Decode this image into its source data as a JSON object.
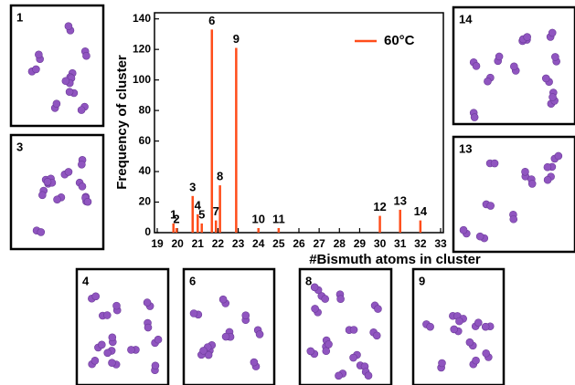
{
  "chart_data": {
    "type": "bar",
    "xlabel": "#Bismuth atoms in cluster",
    "ylabel": "Frequency of cluster",
    "x": [
      19.8,
      19.95,
      20.75,
      21.0,
      21.2,
      21.7,
      21.9,
      22.1,
      22.9,
      24.0,
      25.0,
      30.0,
      31.0,
      32.0
    ],
    "bar_labels": [
      "1",
      "2",
      "3",
      "4",
      "5",
      "6",
      "7",
      "8",
      "9",
      "10",
      "11",
      "12",
      "13",
      "14"
    ],
    "series": [
      {
        "name": "60°C",
        "color": "#ff4d1a",
        "values": [
          6,
          3,
          24,
          12,
          6,
          133,
          8,
          31,
          121,
          3,
          3,
          11,
          15,
          8
        ]
      }
    ],
    "xlim": [
      19,
      33
    ],
    "xticks": [
      19,
      20,
      21,
      22,
      23,
      24,
      25,
      26,
      27,
      28,
      29,
      30,
      31,
      32,
      33
    ],
    "ylim": [
      0,
      144
    ],
    "yticks": [
      0,
      20,
      40,
      60,
      80,
      100,
      120,
      140
    ],
    "legend": "upper right"
  }
}
